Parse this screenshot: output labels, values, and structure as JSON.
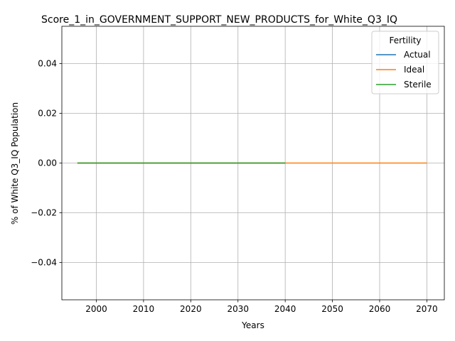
{
  "chart_data": {
    "type": "line",
    "title": "Score_1_in_GOVERNMENT_SUPPORT_NEW_PRODUCTS_for_White_Q3_IQ",
    "xlabel": "Years",
    "ylabel": "% of White Q3_IQ Population",
    "xlim": [
      1992.7,
      2073.7
    ],
    "ylim": [
      -0.055,
      0.055
    ],
    "xticks": [
      2000,
      2010,
      2020,
      2030,
      2040,
      2050,
      2060,
      2070
    ],
    "yticks": [
      -0.04,
      -0.02,
      0.0,
      0.02,
      0.04
    ],
    "ytick_labels": [
      "−0.04",
      "−0.02",
      "0.00",
      "0.02",
      "0.04"
    ],
    "grid": true,
    "legend": {
      "title": "Fertility",
      "position": "top-right"
    },
    "series": [
      {
        "name": "Actual",
        "color": "#1f77b4",
        "x": [
          1996,
          2040
        ],
        "y": [
          0,
          0
        ]
      },
      {
        "name": "Ideal",
        "color": "#ff7f0e",
        "x": [
          1996,
          2070
        ],
        "y": [
          0,
          0
        ]
      },
      {
        "name": "Sterile",
        "color": "#2ca02c",
        "x": [
          1996,
          2040
        ],
        "y": [
          0,
          0
        ]
      }
    ]
  }
}
